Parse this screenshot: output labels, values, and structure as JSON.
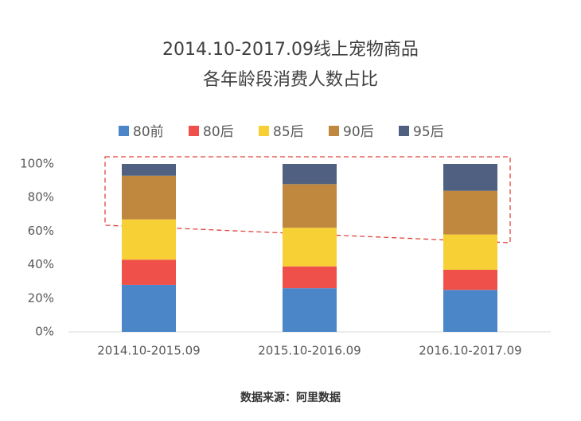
{
  "chart_data": {
    "type": "stacked_bar",
    "title": [
      "2014.10-2017.09线上宠物商品",
      "各年龄段消费人数占比"
    ],
    "source": "数据来源：阿里数据",
    "categories": [
      "2014.10-2015.09",
      "2015.10-2016.09",
      "2016.10-2017.09"
    ],
    "series": [
      {
        "name": "80前",
        "color": "#4a86c8",
        "values": [
          28,
          26,
          25
        ]
      },
      {
        "name": "80后",
        "color": "#f0504a",
        "values": [
          15,
          13,
          12
        ]
      },
      {
        "name": "85后",
        "color": "#f7d036",
        "values": [
          24,
          23,
          21
        ]
      },
      {
        "name": "90后",
        "color": "#c0873e",
        "values": [
          26,
          26,
          26
        ]
      },
      {
        "name": "95后",
        "color": "#4f6080",
        "values": [
          7,
          12,
          16
        ]
      }
    ],
    "ylim": [
      0,
      100
    ],
    "yticks": [
      {
        "value": 0,
        "label": "0%"
      },
      {
        "value": 20,
        "label": "20%"
      },
      {
        "value": 40,
        "label": "40%"
      },
      {
        "value": 60,
        "label": "60%"
      },
      {
        "value": 80,
        "label": "80%"
      },
      {
        "value": 100,
        "label": "100%"
      }
    ],
    "legend": "top"
  }
}
